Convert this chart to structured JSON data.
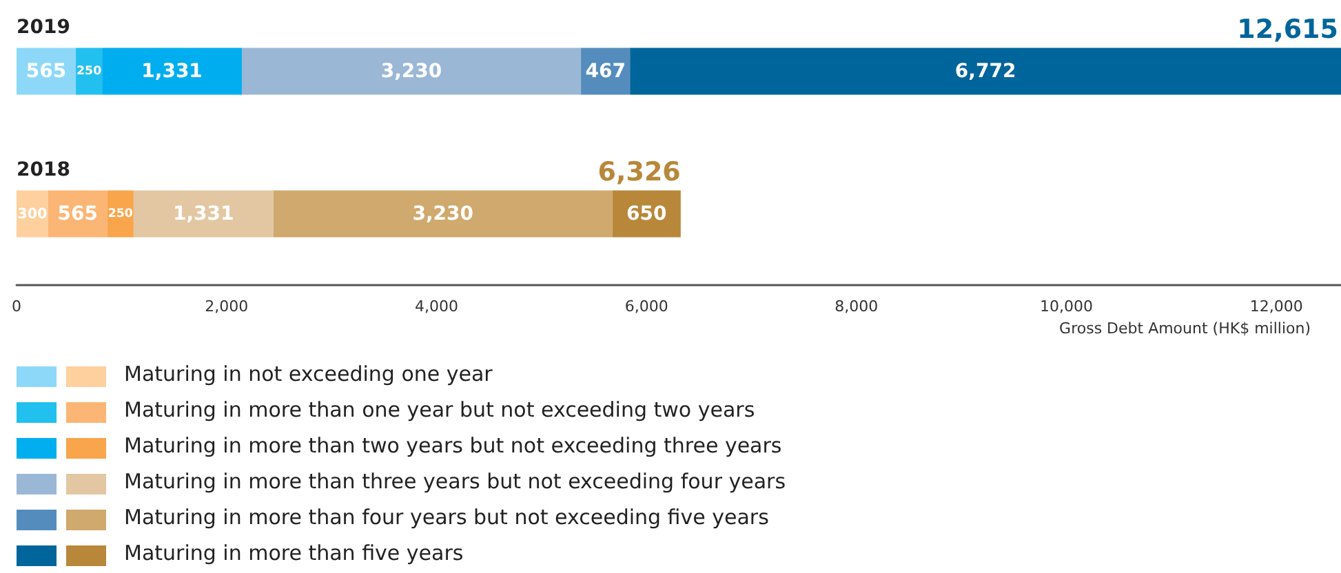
{
  "chart_data": {
    "type": "bar",
    "orientation": "horizontal",
    "stacked": true,
    "categories": [
      "2019",
      "2018"
    ],
    "xlabel": "Gross Debt Amount (HK$ million)",
    "xlim": [
      0,
      12615
    ],
    "xticks": [
      0,
      {
        "value": 2000,
        "label": "2,000"
      },
      {
        "value": 4000,
        "label": "4,000"
      },
      {
        "value": 6000,
        "label": "6,000"
      },
      {
        "value": 8000,
        "label": "8,000"
      },
      {
        "value": 10000,
        "label": "10,000"
      },
      {
        "value": 12000,
        "label": "12,000"
      }
    ],
    "grid": false,
    "legend": "bottom",
    "totals": [
      "12,615",
      "6,326"
    ],
    "series": [
      {
        "name": "Maturing in not exceeding one year",
        "colors": [
          "#8dd8f8",
          "#fdd09e"
        ],
        "values": [
          565,
          300
        ],
        "value_labels": [
          "565",
          "300"
        ]
      },
      {
        "name": "Maturing in more than one year but not exceeding two years",
        "colors": [
          "#22c0ef",
          "#fbb574"
        ],
        "values": [
          250,
          565
        ],
        "value_labels": [
          "250",
          "565"
        ]
      },
      {
        "name": "Maturing in more than two years but not exceeding three years",
        "colors": [
          "#00aeef",
          "#f9a54c"
        ],
        "values": [
          1331,
          250
        ],
        "value_labels": [
          "1,331",
          "250"
        ]
      },
      {
        "name": "Maturing in more than three years but not exceeding four years",
        "colors": [
          "#9ab7d6",
          "#e2c7a2"
        ],
        "values": [
          3230,
          1331
        ],
        "value_labels": [
          "3,230",
          "1,331"
        ]
      },
      {
        "name": "Maturing in more than four years but not exceeding five years",
        "colors": [
          "#548dbd",
          "#cfa96d"
        ],
        "values": [
          467,
          3230
        ],
        "value_labels": [
          "467",
          "3,230"
        ]
      },
      {
        "name": "Maturing in more than five years",
        "colors": [
          "#00659b",
          "#b8873a"
        ],
        "values": [
          6772,
          650
        ],
        "value_labels": [
          "6,772",
          "650"
        ]
      }
    ]
  }
}
